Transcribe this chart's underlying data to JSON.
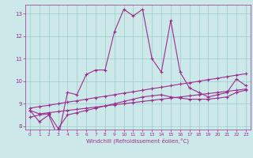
{
  "xlabel": "Windchill (Refroidissement éolien,°C)",
  "x_values": [
    0,
    1,
    2,
    3,
    4,
    5,
    6,
    7,
    8,
    9,
    10,
    11,
    12,
    13,
    14,
    15,
    16,
    17,
    18,
    19,
    20,
    21,
    22,
    23
  ],
  "line1": [
    8.7,
    8.2,
    8.5,
    7.5,
    9.5,
    9.4,
    10.3,
    10.5,
    10.5,
    12.2,
    13.2,
    12.9,
    13.2,
    11.0,
    10.4,
    12.7,
    10.4,
    9.7,
    9.5,
    9.3,
    9.4,
    9.5,
    10.1,
    9.8
  ],
  "line2": [
    8.7,
    8.55,
    8.6,
    8.65,
    8.7,
    8.75,
    8.8,
    8.85,
    8.9,
    8.95,
    9.0,
    9.05,
    9.1,
    9.15,
    9.2,
    9.25,
    9.3,
    9.35,
    9.4,
    9.45,
    9.5,
    9.55,
    9.6,
    9.65
  ],
  "line3": [
    8.8,
    8.87,
    8.93,
    9.0,
    9.07,
    9.13,
    9.2,
    9.27,
    9.33,
    9.4,
    9.47,
    9.53,
    9.6,
    9.67,
    9.73,
    9.8,
    9.87,
    9.93,
    10.0,
    10.07,
    10.13,
    10.2,
    10.27,
    10.33
  ],
  "line4": [
    8.4,
    8.5,
    8.55,
    7.9,
    8.5,
    8.6,
    8.7,
    8.8,
    8.9,
    9.0,
    9.1,
    9.2,
    9.3,
    9.35,
    9.4,
    9.3,
    9.25,
    9.2,
    9.2,
    9.2,
    9.25,
    9.3,
    9.5,
    9.6
  ],
  "yticks": [
    8,
    9,
    10,
    11,
    12,
    13
  ],
  "line_color": "#9b2d8e",
  "bg_color": "#cce8e8",
  "grid_color": "#99cccc"
}
